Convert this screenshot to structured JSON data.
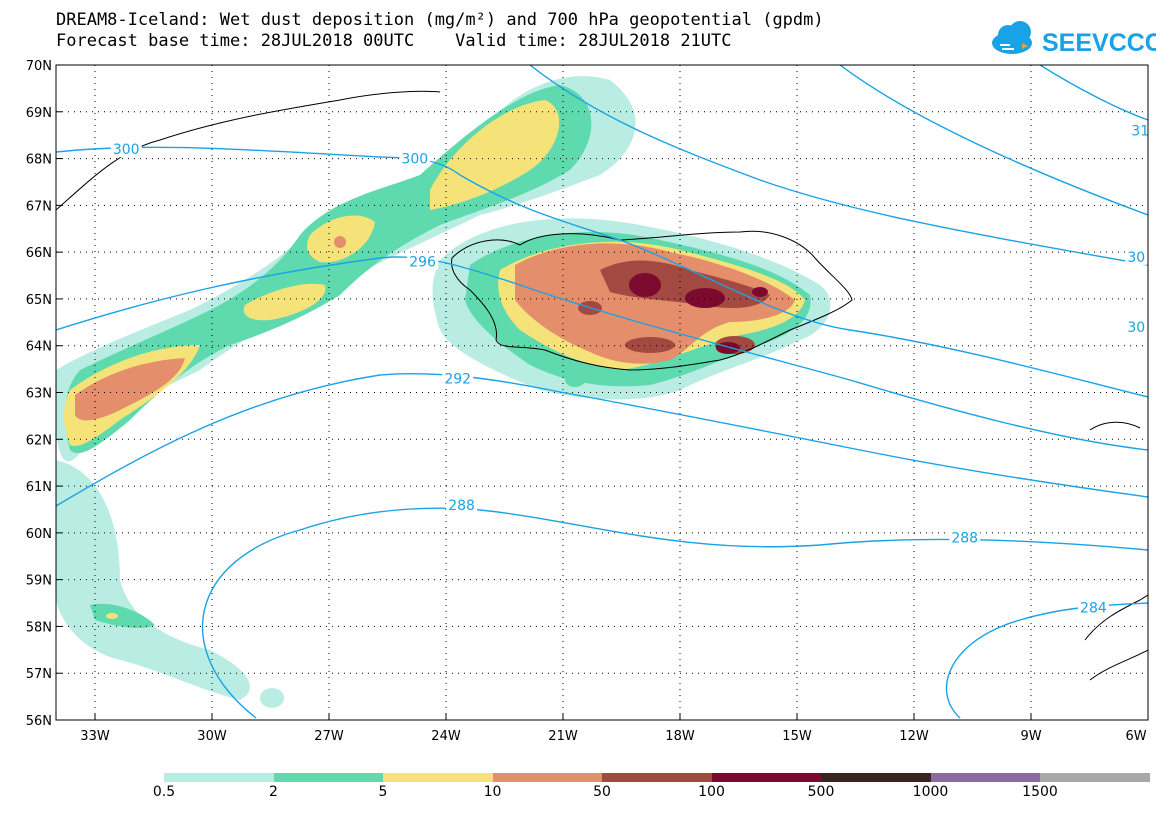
{
  "header": {
    "title_line1": "DREAM8-Iceland: Wet dust deposition (mg/m²) and 700 hPa geopotential (gpdm)",
    "title_line2": "Forecast base time: 28JUL2018 00UTC    Valid time: 28JUL2018 21UTC"
  },
  "logo": {
    "text": "SEEVCCC",
    "icon": "cloud-icon",
    "color": "#1aa2e6"
  },
  "map": {
    "lat_labels": [
      "70N",
      "69N",
      "68N",
      "67N",
      "66N",
      "65N",
      "64N",
      "63N",
      "62N",
      "61N",
      "60N",
      "59N",
      "58N",
      "57N",
      "56N"
    ],
    "lon_labels": [
      "33W",
      "30W",
      "27W",
      "24W",
      "21W",
      "18W",
      "15W",
      "12W",
      "9W",
      "6W"
    ],
    "lat_range": [
      56,
      70
    ],
    "lon_range": [
      -34.0,
      -6.0
    ],
    "grid": "dotted",
    "contour_color": "#1aa2e6",
    "contour_labels": [
      {
        "text": "300",
        "lon": -32.2,
        "lat": 68.2
      },
      {
        "text": "300",
        "lon": -24.8,
        "lat": 68.0
      },
      {
        "text": "296",
        "lon": -24.6,
        "lat": 65.8
      },
      {
        "text": "292",
        "lon": -23.7,
        "lat": 63.3
      },
      {
        "text": "288",
        "lon": -23.6,
        "lat": 60.6
      },
      {
        "text": "288",
        "lon": -10.7,
        "lat": 59.9
      },
      {
        "text": "284",
        "lon": -7.4,
        "lat": 58.4
      },
      {
        "text": "31",
        "lon": -6.2,
        "lat": 68.6
      },
      {
        "text": "30",
        "lon": -6.3,
        "lat": 65.9
      },
      {
        "text": "30",
        "lon": -6.3,
        "lat": 64.4
      }
    ]
  },
  "colorbar": {
    "colors": [
      "#b9ede3",
      "#5fdaae",
      "#f5e37a",
      "#e58e6c",
      "#a24a42",
      "#7b0a2e",
      "#392420",
      "#8b6a9e",
      "#a8a8a8"
    ],
    "labels": [
      "0.5",
      "2",
      "5",
      "10",
      "50",
      "100",
      "500",
      "1000",
      "1500"
    ]
  }
}
